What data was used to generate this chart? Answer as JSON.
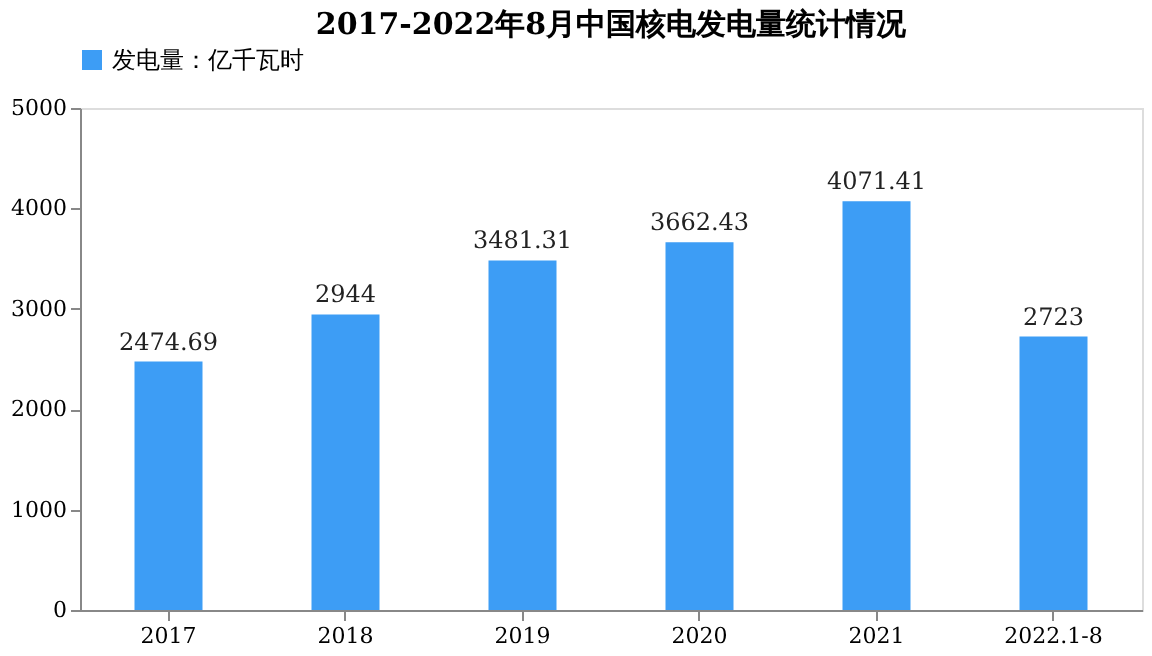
{
  "chart_data": {
    "type": "bar",
    "title": "2017-2022年8月中国核电发电量统计情况",
    "categories": [
      "2017",
      "2018",
      "2019",
      "2020",
      "2021",
      "2022.1-8"
    ],
    "series": [
      {
        "name": "发电量：亿千瓦时",
        "color": "#3d9df5",
        "values": [
          2474.69,
          2944,
          3481.31,
          3662.43,
          4071.41,
          2723
        ]
      }
    ],
    "ylim": [
      0,
      5000
    ],
    "yticks": [
      0,
      1000,
      2000,
      3000,
      4000,
      5000
    ],
    "grid": false,
    "legend": "top",
    "data_labels": true
  }
}
